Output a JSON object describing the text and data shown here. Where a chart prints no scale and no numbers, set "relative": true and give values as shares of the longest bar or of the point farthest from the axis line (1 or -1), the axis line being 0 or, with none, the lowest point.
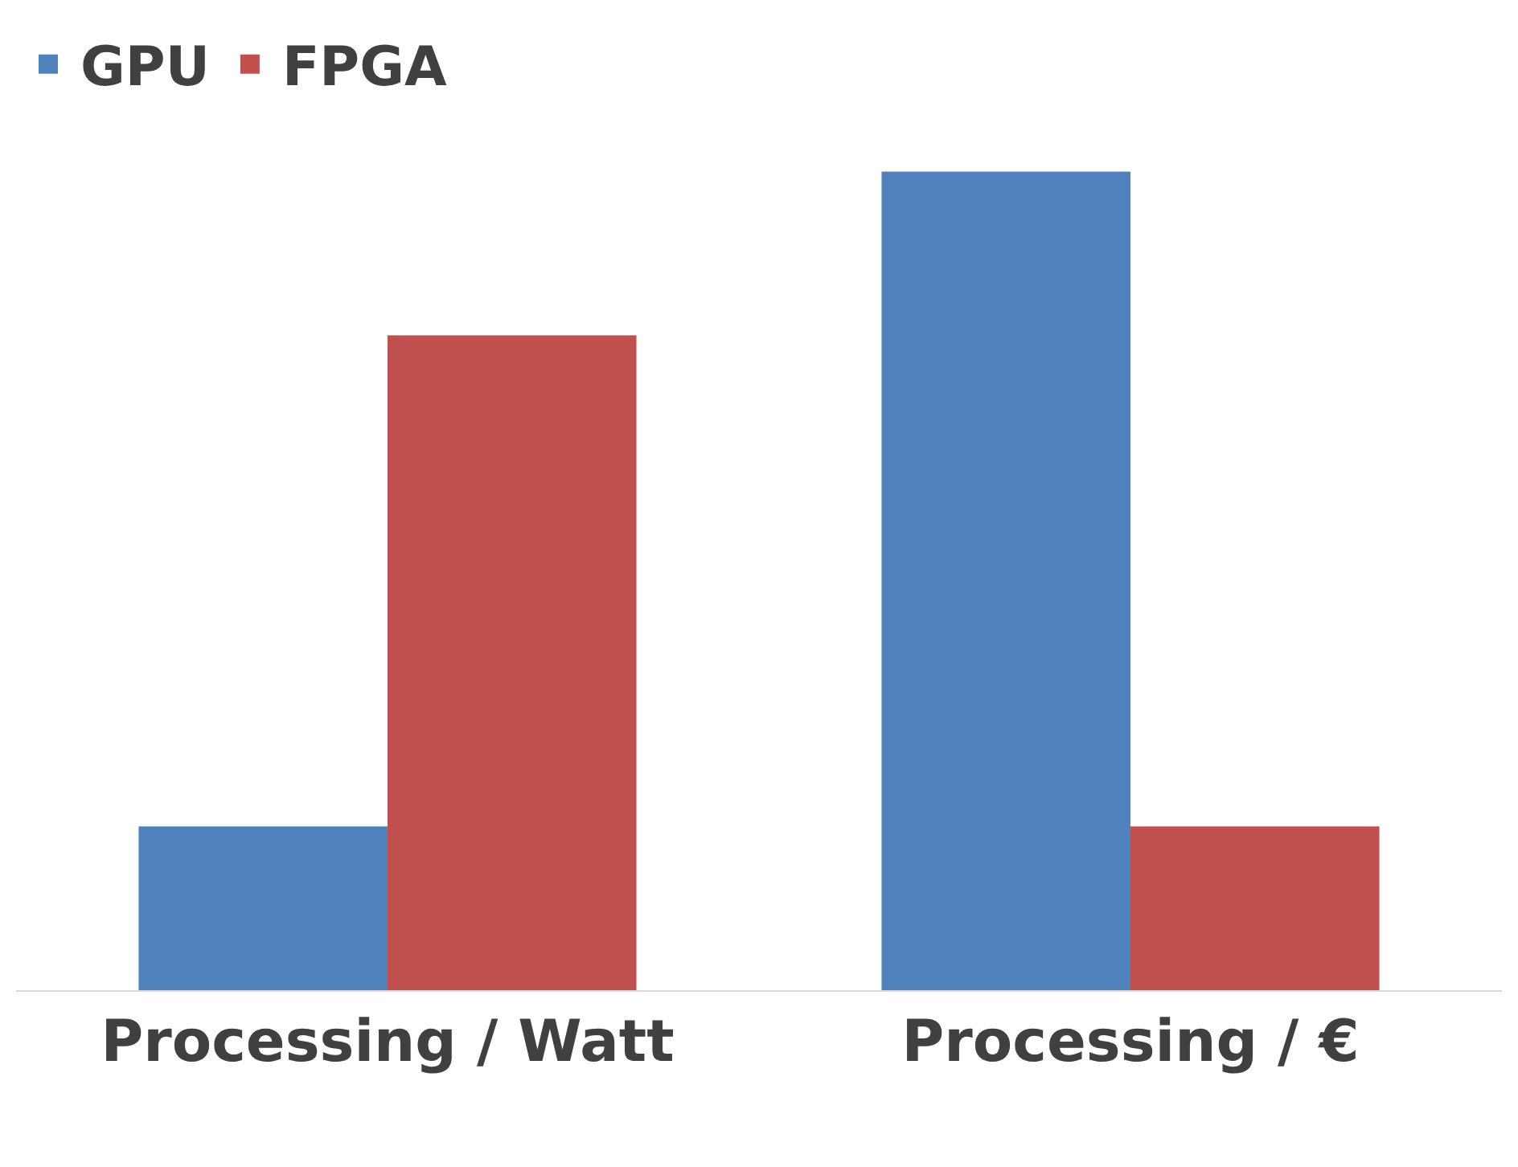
{
  "chart_data": {
    "type": "bar",
    "relative": true,
    "categories": [
      "Processing / Watt",
      "Processing / €"
    ],
    "series": [
      {
        "name": "GPU",
        "color": "#4f81bd",
        "values": [
          0.2,
          1
        ]
      },
      {
        "name": "FPGA",
        "color": "#c0504d",
        "values": [
          0.8,
          0.2
        ]
      }
    ],
    "legend": "top left",
    "grid": false
  }
}
